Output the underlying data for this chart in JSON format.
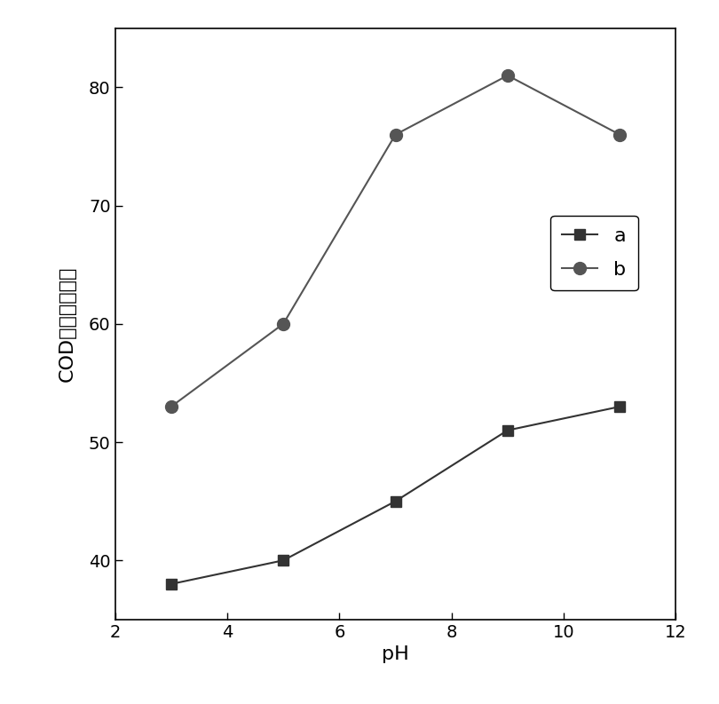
{
  "series_a": {
    "x": [
      3,
      5,
      7,
      9,
      11
    ],
    "y": [
      38,
      40,
      45,
      51,
      53
    ],
    "label": "a",
    "color": "#333333",
    "marker": "s",
    "markersize": 8,
    "linewidth": 1.5
  },
  "series_b": {
    "x": [
      3,
      5,
      7,
      9,
      11
    ],
    "y": [
      53,
      60,
      76,
      81,
      76
    ],
    "label": "b",
    "color": "#555555",
    "marker": "o",
    "markersize": 10,
    "linewidth": 1.5
  },
  "xlabel": "pH",
  "ylabel": "COD去除率（％）",
  "xlim": [
    2,
    12
  ],
  "ylim": [
    35,
    85
  ],
  "xticks": [
    2,
    4,
    6,
    8,
    10,
    12
  ],
  "yticks": [
    40,
    50,
    60,
    70,
    80
  ],
  "figsize": [
    8.1,
    7.93
  ],
  "dpi": 100,
  "background_color": "#ffffff",
  "tick_fontsize": 14,
  "label_fontsize": 16
}
